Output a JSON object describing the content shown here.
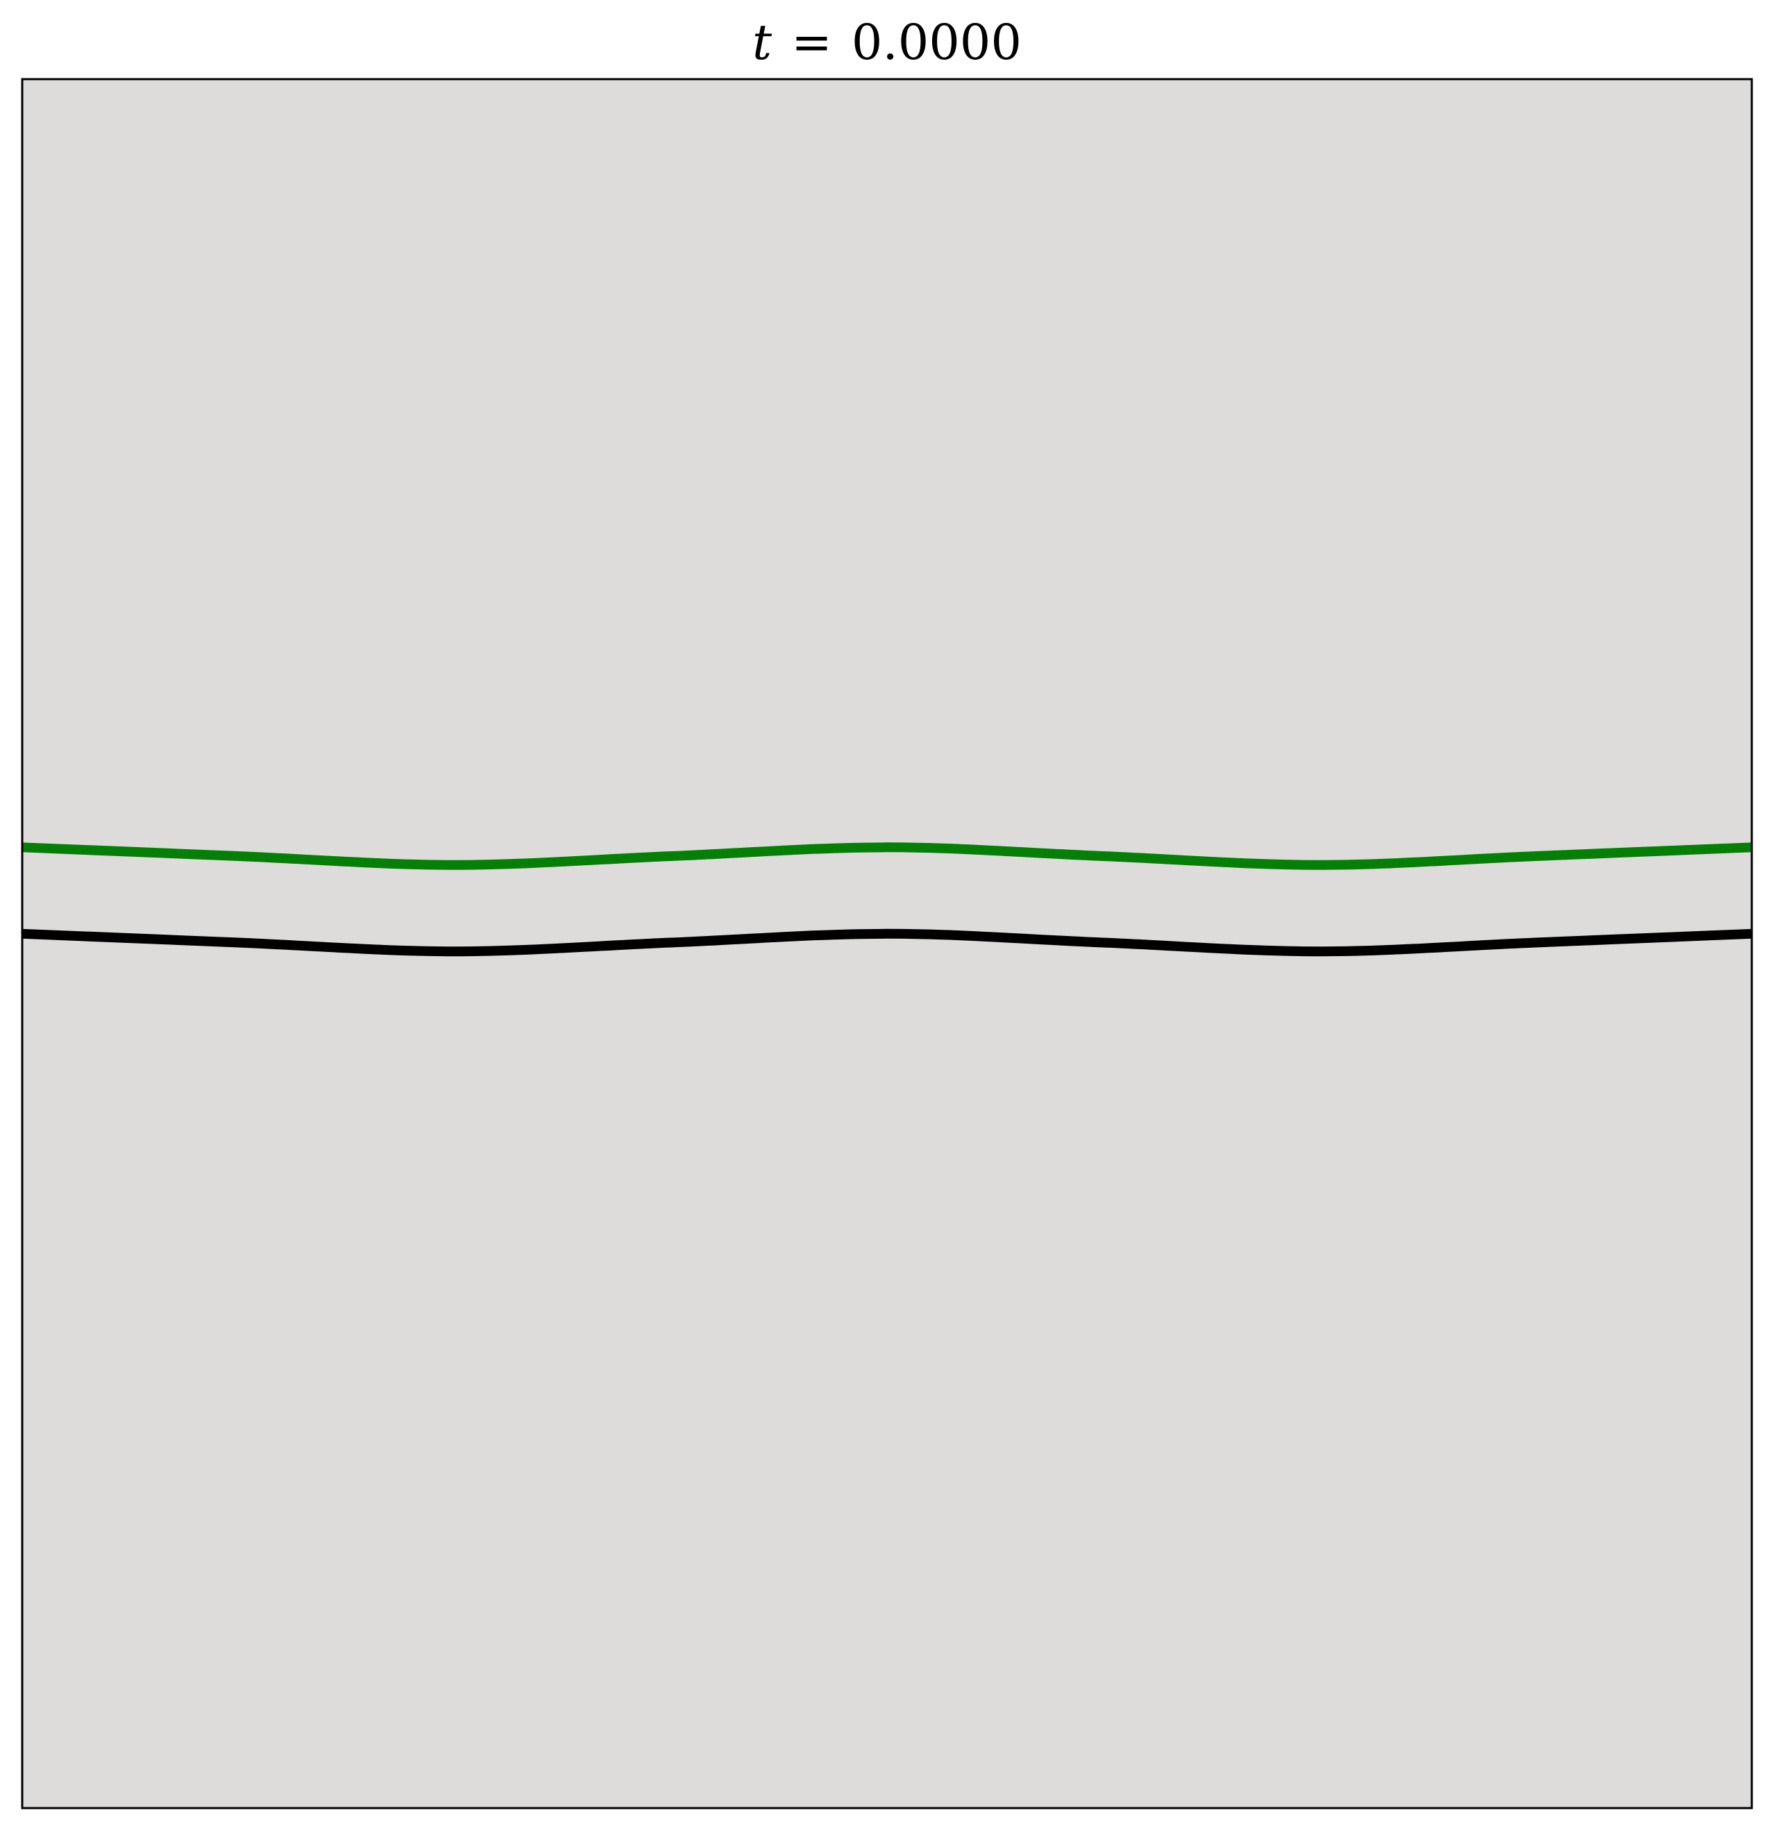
{
  "chart_data": {
    "type": "line",
    "title": {
      "variable": "t",
      "operator": "=",
      "value": "0.0000"
    },
    "xlabel": "",
    "ylabel": "",
    "xlim": [
      0,
      1
    ],
    "ylim": [
      0,
      1
    ],
    "axes_background": "#dddcdb",
    "grid": false,
    "ticks": false,
    "legend": "none",
    "series": [
      {
        "color": "#067f06",
        "x": [
          0,
          0.125,
          0.25,
          0.375,
          0.5,
          0.625,
          0.75,
          0.875,
          1
        ],
        "y": [
          0.5557,
          0.5506,
          0.5455,
          0.5506,
          0.5557,
          0.5506,
          0.5455,
          0.5506,
          0.5557
        ]
      },
      {
        "color": "#000000",
        "x": [
          0,
          0.125,
          0.25,
          0.375,
          0.5,
          0.625,
          0.75,
          0.875,
          1
        ],
        "y": [
          0.5057,
          0.5006,
          0.4955,
          0.5006,
          0.5057,
          0.5006,
          0.4955,
          0.5006,
          0.5057
        ]
      }
    ]
  }
}
